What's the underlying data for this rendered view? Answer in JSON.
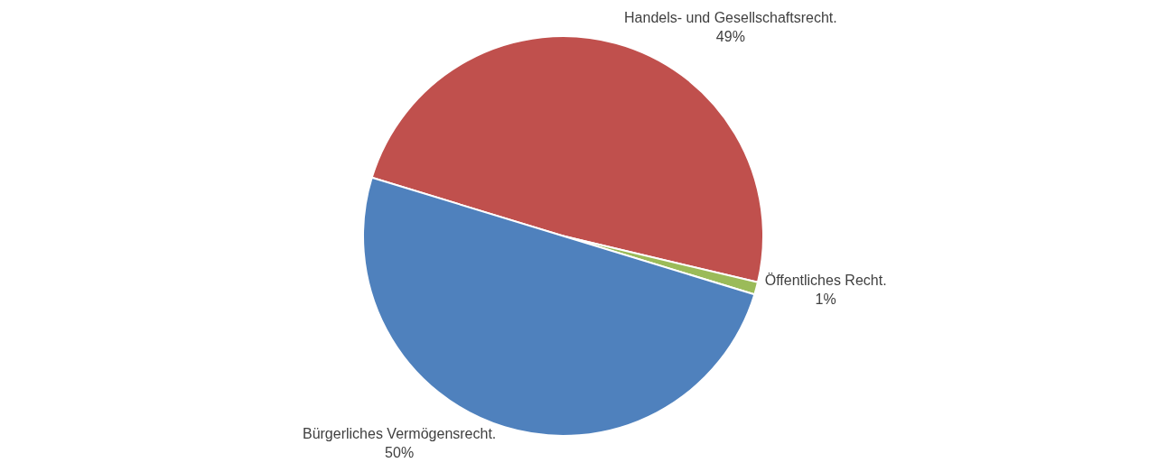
{
  "chart_data": {
    "type": "pie",
    "categories": [
      "Handels- und Gesellschaftsrecht.",
      "Öffentliches Recht.",
      "Bürgerliches Vermögensrecht."
    ],
    "values": [
      49,
      1,
      50
    ],
    "value_labels": [
      "49%",
      "1%",
      "50%"
    ],
    "colors": [
      "#c0504d",
      "#9bbb59",
      "#4f81bd"
    ],
    "legend": false
  }
}
